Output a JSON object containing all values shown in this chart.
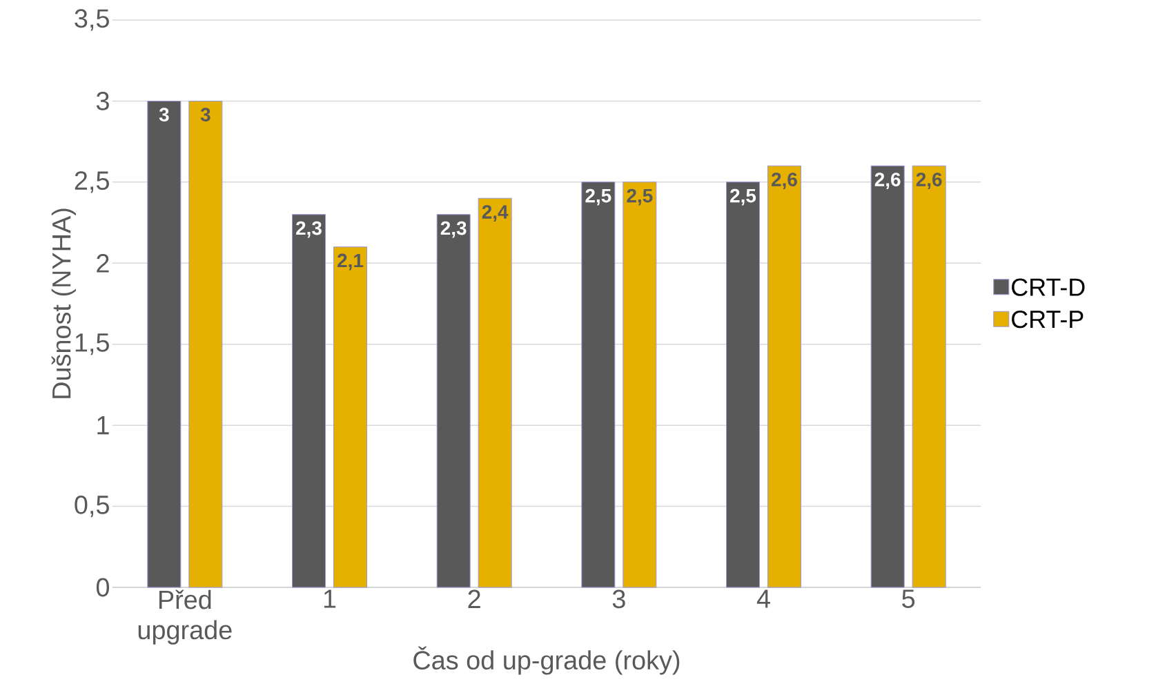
{
  "chart_data": {
    "type": "bar",
    "categories": [
      "Před upgrade",
      "1",
      "2",
      "3",
      "4",
      "5"
    ],
    "series": [
      {
        "name": "CRT-D",
        "color": "#595959",
        "values": [
          3,
          2.3,
          2.3,
          2.5,
          2.5,
          2.6
        ],
        "value_labels": [
          "3",
          "2,3",
          "2,3",
          "2,5",
          "2,5",
          "2,6"
        ]
      },
      {
        "name": "CRT-P",
        "color": "#e6b000",
        "values": [
          3,
          2.1,
          2.4,
          2.5,
          2.6,
          2.6
        ],
        "value_labels": [
          "3",
          "2,1",
          "2,4",
          "2,5",
          "2,6",
          "2,6"
        ]
      }
    ],
    "xlabel": "Čas od up-grade (roky)",
    "ylabel": "Dušnost (NYHA)",
    "ylim": [
      0,
      3.5
    ],
    "yticks": [
      0,
      {
        "value": 0.5,
        "label": "0,5"
      },
      1,
      {
        "value": 1.5,
        "label": "1,5"
      },
      2,
      {
        "value": 2.5,
        "label": "2,5"
      },
      3,
      {
        "value": 3.5,
        "label": "3,5"
      }
    ],
    "grid": "y",
    "legend": "right"
  }
}
